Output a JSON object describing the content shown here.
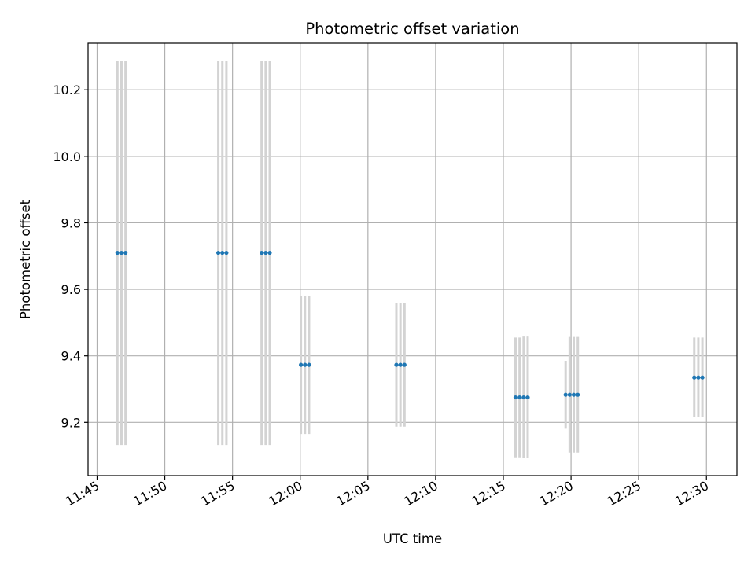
{
  "chart_data": {
    "type": "scatter",
    "title": "Photometric offset variation",
    "xlabel": "UTC time",
    "ylabel": "Photometric offset",
    "x_axis": {
      "type": "time",
      "range": [
        "11:44:20",
        "12:32:15"
      ],
      "tick_labels": [
        "11:45",
        "11:50",
        "11:55",
        "12:00",
        "12:05",
        "12:10",
        "12:15",
        "12:20",
        "12:25",
        "12:30"
      ]
    },
    "y_axis": {
      "range": [
        9.04,
        10.34
      ],
      "tick_labels": [
        "9.2",
        "9.4",
        "9.6",
        "9.8",
        "10.0",
        "10.2"
      ]
    },
    "grid": true,
    "legend": "none",
    "colors": {
      "points": "#1f77b4",
      "errorbars": "#d3d3d3",
      "grid": "#b0b0b0"
    },
    "series": [
      {
        "marker": "dot",
        "points": [
          {
            "x": "11:46:30",
            "y": 9.71,
            "yerr": 0.578
          },
          {
            "x": "11:46:48",
            "y": 9.71,
            "yerr": 0.578
          },
          {
            "x": "11:47:06",
            "y": 9.71,
            "yerr": 0.578
          },
          {
            "x": "11:53:57",
            "y": 9.71,
            "yerr": 0.578
          },
          {
            "x": "11:54:15",
            "y": 9.71,
            "yerr": 0.578
          },
          {
            "x": "11:54:33",
            "y": 9.71,
            "yerr": 0.578
          },
          {
            "x": "11:57:09",
            "y": 9.71,
            "yerr": 0.578
          },
          {
            "x": "11:57:27",
            "y": 9.71,
            "yerr": 0.578
          },
          {
            "x": "11:57:45",
            "y": 9.71,
            "yerr": 0.578
          },
          {
            "x": "12:00:03",
            "y": 9.373,
            "yerr": 0.208
          },
          {
            "x": "12:00:21",
            "y": 9.373,
            "yerr": 0.208
          },
          {
            "x": "12:00:39",
            "y": 9.373,
            "yerr": 0.208
          },
          {
            "x": "12:07:06",
            "y": 9.373,
            "yerr": 0.186
          },
          {
            "x": "12:07:24",
            "y": 9.373,
            "yerr": 0.186
          },
          {
            "x": "12:07:42",
            "y": 9.373,
            "yerr": 0.186
          },
          {
            "x": "12:15:54",
            "y": 9.275,
            "yerr": 0.18
          },
          {
            "x": "12:16:12",
            "y": 9.275,
            "yerr": 0.18
          },
          {
            "x": "12:16:30",
            "y": 9.275,
            "yerr": 0.183
          },
          {
            "x": "12:16:48",
            "y": 9.275,
            "yerr": 0.183
          },
          {
            "x": "12:19:36",
            "y": 9.283,
            "yerr": 0.102
          },
          {
            "x": "12:19:54",
            "y": 9.283,
            "yerr": 0.174
          },
          {
            "x": "12:20:12",
            "y": 9.283,
            "yerr": 0.174
          },
          {
            "x": "12:20:30",
            "y": 9.283,
            "yerr": 0.174
          },
          {
            "x": "12:29:06",
            "y": 9.335,
            "yerr": 0.12
          },
          {
            "x": "12:29:24",
            "y": 9.335,
            "yerr": 0.12
          },
          {
            "x": "12:29:42",
            "y": 9.335,
            "yerr": 0.12
          }
        ]
      }
    ]
  }
}
